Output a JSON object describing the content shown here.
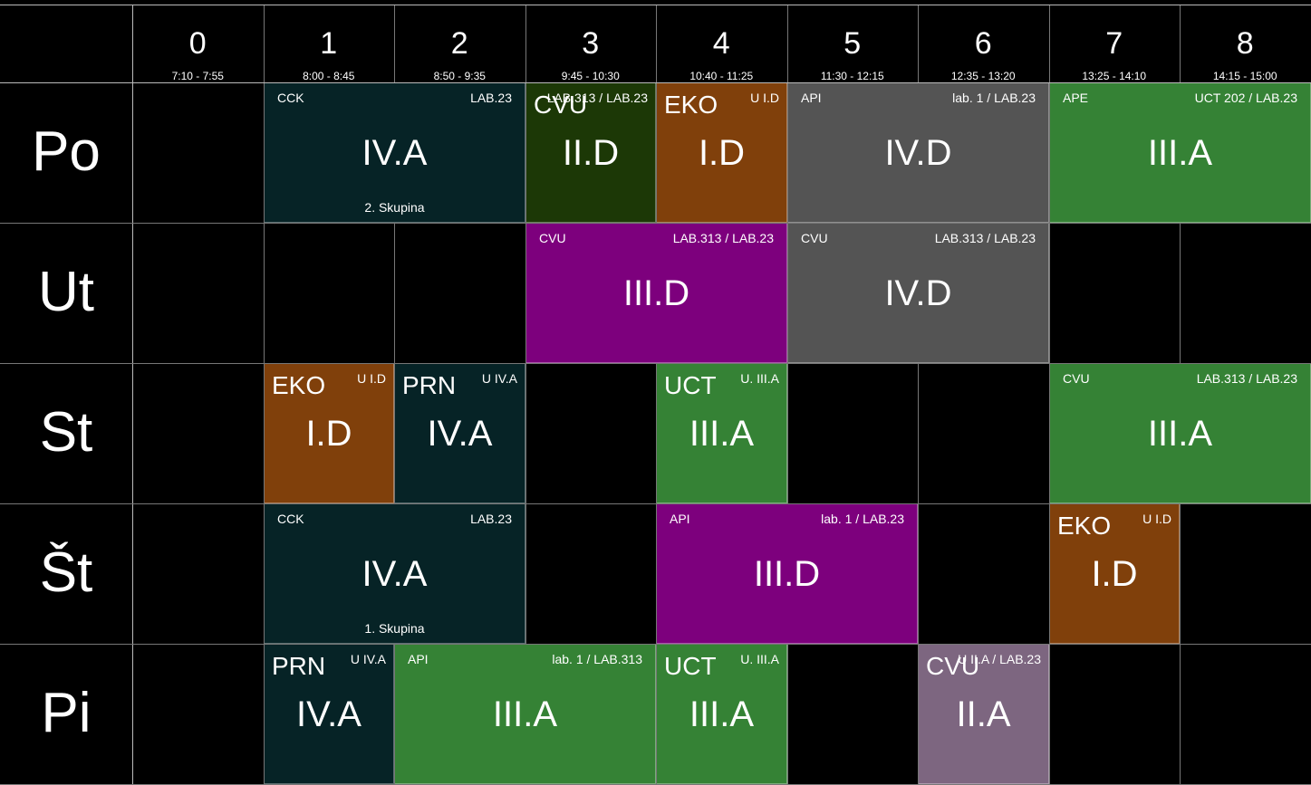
{
  "periods": [
    {
      "num": "0",
      "time": "7:10 - 7:55"
    },
    {
      "num": "1",
      "time": "8:00 - 8:45"
    },
    {
      "num": "2",
      "time": "8:50 - 9:35"
    },
    {
      "num": "3",
      "time": "9:45 - 10:30"
    },
    {
      "num": "4",
      "time": "10:40 - 11:25"
    },
    {
      "num": "5",
      "time": "11:30 - 12:15"
    },
    {
      "num": "6",
      "time": "12:35 - 13:20"
    },
    {
      "num": "7",
      "time": "13:25 - 14:10"
    },
    {
      "num": "8",
      "time": "14:15 - 15:00"
    }
  ],
  "days": [
    "Po",
    "Ut",
    "St",
    "Št",
    "Pi"
  ],
  "colors": {
    "teal": "#062326",
    "green": "#358235",
    "darkgreen": "#1c3806",
    "orange": "#80400b",
    "gray": "#545454",
    "purple": "#7d007d",
    "mauve": "#7d6680"
  },
  "lessons": [
    {
      "day": 0,
      "start": 1,
      "span": 2,
      "subject": "CCK",
      "room": "LAB.23",
      "cls": "IV.A",
      "group": "2. Skupina",
      "color": "teal",
      "style": "normal"
    },
    {
      "day": 0,
      "start": 3,
      "span": 1,
      "subject": "CVU",
      "room": "LAB.313 / LAB.23",
      "cls": "II.D",
      "group": "",
      "color": "darkgreen",
      "style": "small"
    },
    {
      "day": 0,
      "start": 4,
      "span": 1,
      "subject": "EKO",
      "room": "U I.D",
      "cls": "I.D",
      "group": "",
      "color": "orange",
      "style": "small"
    },
    {
      "day": 0,
      "start": 5,
      "span": 2,
      "subject": "API",
      "room": "lab. 1 / LAB.23",
      "cls": "IV.D",
      "group": "",
      "color": "gray",
      "style": "normal"
    },
    {
      "day": 0,
      "start": 7,
      "span": 2,
      "subject": "APE",
      "room": "UCT 202 / LAB.23",
      "cls": "III.A",
      "group": "",
      "color": "green",
      "style": "normal"
    },
    {
      "day": 1,
      "start": 3,
      "span": 2,
      "subject": "CVU",
      "room": "LAB.313 / LAB.23",
      "cls": "III.D",
      "group": "",
      "color": "purple",
      "style": "normal"
    },
    {
      "day": 1,
      "start": 5,
      "span": 2,
      "subject": "CVU",
      "room": "LAB.313 / LAB.23",
      "cls": "IV.D",
      "group": "",
      "color": "gray",
      "style": "normal"
    },
    {
      "day": 2,
      "start": 1,
      "span": 1,
      "subject": "EKO",
      "room": "U I.D",
      "cls": "I.D",
      "group": "",
      "color": "orange",
      "style": "small"
    },
    {
      "day": 2,
      "start": 2,
      "span": 1,
      "subject": "PRN",
      "room": "U IV.A",
      "cls": "IV.A",
      "group": "",
      "color": "teal",
      "style": "small"
    },
    {
      "day": 2,
      "start": 4,
      "span": 1,
      "subject": "UCT",
      "room": "U. III.A",
      "cls": "III.A",
      "group": "",
      "color": "green",
      "style": "small"
    },
    {
      "day": 2,
      "start": 7,
      "span": 2,
      "subject": "CVU",
      "room": "LAB.313 / LAB.23",
      "cls": "III.A",
      "group": "",
      "color": "green",
      "style": "normal"
    },
    {
      "day": 3,
      "start": 1,
      "span": 2,
      "subject": "CCK",
      "room": "LAB.23",
      "cls": "IV.A",
      "group": "1. Skupina",
      "color": "teal",
      "style": "normal"
    },
    {
      "day": 3,
      "start": 4,
      "span": 2,
      "subject": "API",
      "room": "lab. 1 / LAB.23",
      "cls": "III.D",
      "group": "",
      "color": "purple",
      "style": "normal"
    },
    {
      "day": 3,
      "start": 7,
      "span": 1,
      "subject": "EKO",
      "room": "U I.D",
      "cls": "I.D",
      "group": "",
      "color": "orange",
      "style": "small"
    },
    {
      "day": 4,
      "start": 1,
      "span": 1,
      "subject": "PRN",
      "room": "U IV.A",
      "cls": "IV.A",
      "group": "",
      "color": "teal",
      "style": "small"
    },
    {
      "day": 4,
      "start": 2,
      "span": 2,
      "subject": "API",
      "room": "lab. 1 / LAB.313",
      "cls": "III.A",
      "group": "",
      "color": "green",
      "style": "normal"
    },
    {
      "day": 4,
      "start": 4,
      "span": 1,
      "subject": "UCT",
      "room": "U. III.A",
      "cls": "III.A",
      "group": "",
      "color": "green",
      "style": "small"
    },
    {
      "day": 4,
      "start": 6,
      "span": 1,
      "subject": "CVU",
      "room": "U II.A / LAB.23",
      "cls": "II.A",
      "group": "",
      "color": "mauve",
      "style": "small"
    }
  ]
}
